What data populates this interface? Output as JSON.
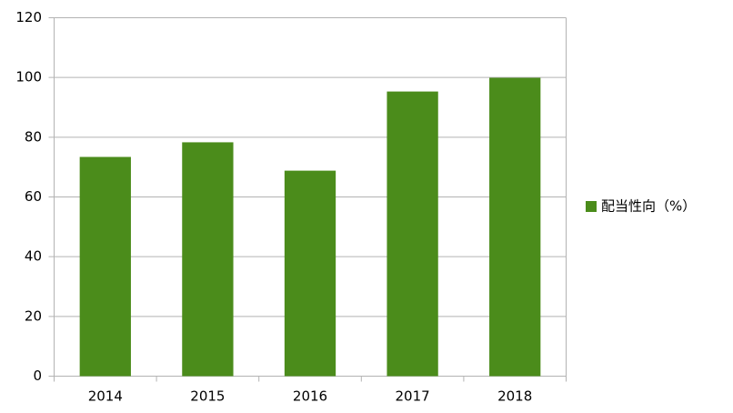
{
  "chart_data": {
    "type": "bar",
    "categories": [
      "2014",
      "2015",
      "2016",
      "2017",
      "2018"
    ],
    "series": [
      {
        "name": "配当性向（%）",
        "color": "#4b8c1b",
        "values": [
          73.4,
          78.3,
          68.8,
          95.3,
          99.9
        ]
      }
    ],
    "ylim": [
      0,
      120
    ],
    "yticks": [
      0,
      20,
      40,
      60,
      80,
      100,
      120
    ],
    "grid": true,
    "legend": "right"
  }
}
